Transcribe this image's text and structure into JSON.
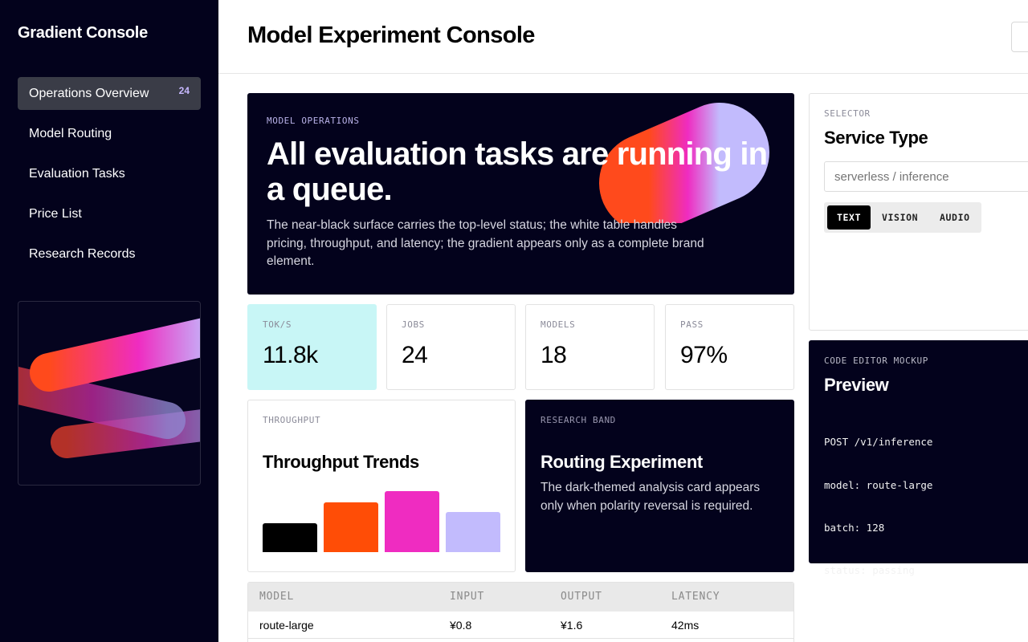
{
  "sidebar": {
    "brand": "Gradient Console",
    "items": [
      {
        "label": "Operations Overview",
        "badge": "24",
        "active": true
      },
      {
        "label": "Model Routing"
      },
      {
        "label": "Evaluation Tasks"
      },
      {
        "label": "Price List"
      },
      {
        "label": "Research Records"
      }
    ]
  },
  "header": {
    "title": "Model Experiment Console"
  },
  "hero": {
    "eyebrow": "MODEL OPERATIONS",
    "title": "All evaluation tasks are running in a queue.",
    "body": "The near-black surface carries the top-level status; the white table handles pricing, throughput, and latency; the gradient appears only as a complete brand element."
  },
  "stats": [
    {
      "label": "TOK/S",
      "value": "11.8k"
    },
    {
      "label": "JOBS",
      "value": "24"
    },
    {
      "label": "MODELS",
      "value": "18"
    },
    {
      "label": "PASS",
      "value": "97%"
    }
  ],
  "throughput": {
    "eyebrow": "THROUGHPUT",
    "title": "Throughput Trends",
    "chart_data": {
      "type": "bar",
      "values": [
        36,
        62,
        76,
        50
      ],
      "colors": [
        "#000000",
        "#ff4d06",
        "#ef2cc1",
        "#c2bbfd"
      ]
    }
  },
  "research": {
    "eyebrow": "RESEARCH BAND",
    "title": "Routing Experiment",
    "body": "The dark-themed analysis card appears only when polarity reversal is required."
  },
  "table": {
    "headers": [
      "MODEL",
      "INPUT",
      "OUTPUT",
      "LATENCY"
    ],
    "rows": [
      [
        "route-large",
        "¥0.8",
        "¥1.6",
        "42ms"
      ]
    ]
  },
  "selector": {
    "eyebrow": "SELECTOR",
    "title": "Service Type",
    "placeholder": "serverless / inference",
    "segments": [
      "TEXT",
      "VISION",
      "AUDIO"
    ],
    "selected": "TEXT"
  },
  "code_preview": {
    "eyebrow": "CODE EDITOR MOCKUP",
    "title": "Preview",
    "lines": [
      "POST /v1/inference",
      "model: route-large",
      "batch: 128",
      "status: passing"
    ]
  },
  "colors": {
    "navy": "#03021c",
    "accent_cyan": "#c8f6f6",
    "gradient": [
      "#ff4d06",
      "#ef2cc1",
      "#c2bbfd"
    ]
  }
}
